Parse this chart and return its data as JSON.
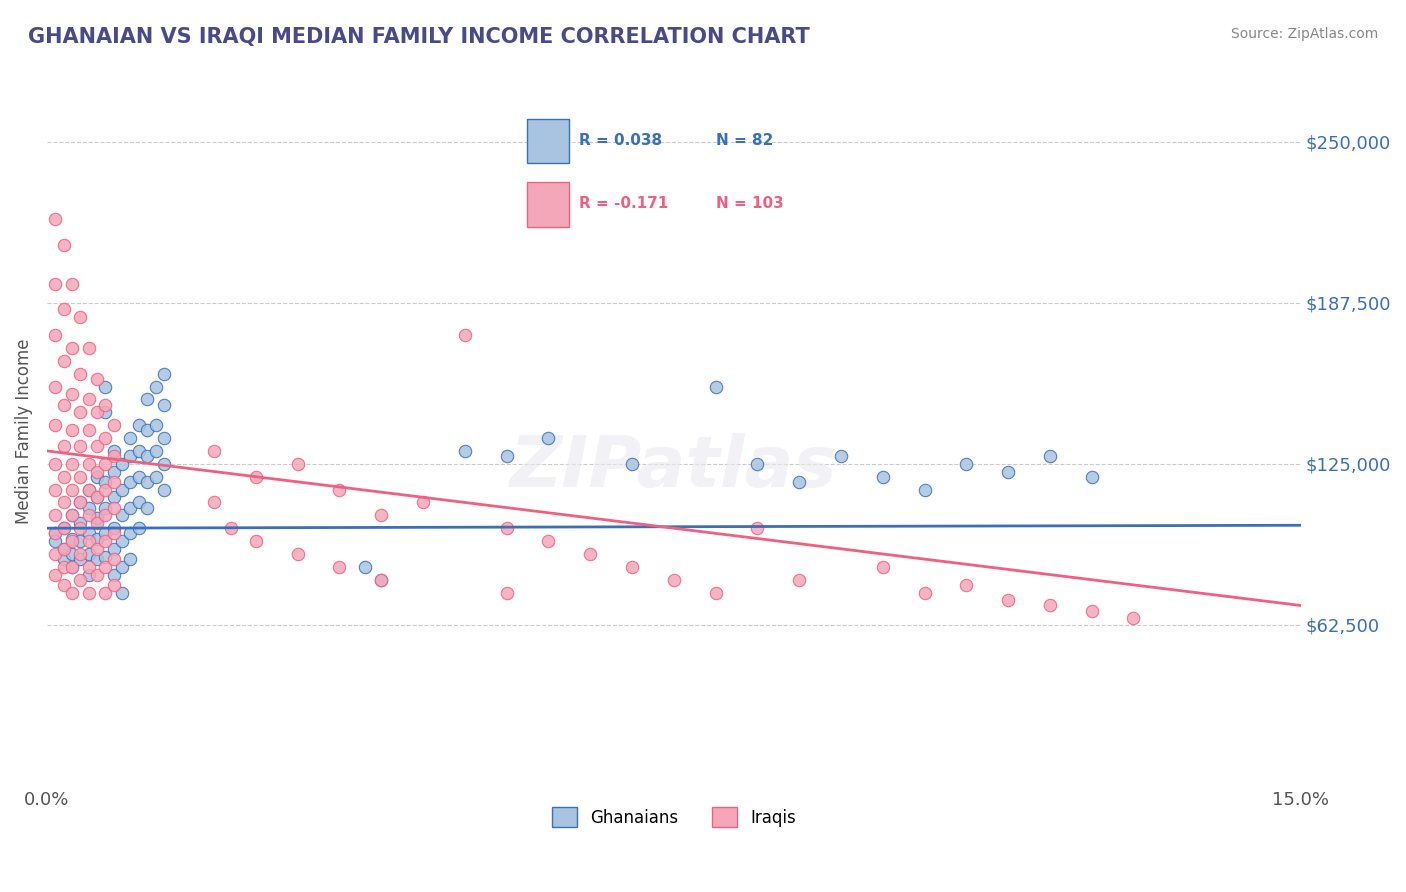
{
  "title": "GHANAIAN VS IRAQI MEDIAN FAMILY INCOME CORRELATION CHART",
  "title_color": "#4a4a8a",
  "xlabel": "",
  "ylabel": "Median Family Income",
  "source_text": "Source: ZipAtlas.com",
  "watermark": "ZIPatlas",
  "x_min": 0.0,
  "x_max": 0.15,
  "y_min": 0,
  "y_max": 275000,
  "y_ticks": [
    62500,
    125000,
    187500,
    250000
  ],
  "y_tick_labels": [
    "$62,500",
    "$125,000",
    "$187,500",
    "$250,000"
  ],
  "x_ticks": [
    0.0,
    0.15
  ],
  "x_tick_labels": [
    "0.0%",
    "15.0%"
  ],
  "ghanaian_color": "#a8c4e0",
  "iraqi_color": "#f4a7b9",
  "ghanaian_line_color": "#3a6fbd",
  "iraqi_line_color": "#f06080",
  "legend_box_color": "#ffffff",
  "legend_border_color": "#cccccc",
  "R_ghanaian": 0.038,
  "N_ghanaian": 82,
  "R_iraqi": -0.171,
  "N_iraqi": 103,
  "ghanaian_scatter": [
    [
      0.001,
      98000
    ],
    [
      0.001,
      95000
    ],
    [
      0.002,
      100000
    ],
    [
      0.002,
      92000
    ],
    [
      0.002,
      88000
    ],
    [
      0.003,
      105000
    ],
    [
      0.003,
      96000
    ],
    [
      0.003,
      90000
    ],
    [
      0.003,
      85000
    ],
    [
      0.004,
      110000
    ],
    [
      0.004,
      102000
    ],
    [
      0.004,
      95000
    ],
    [
      0.004,
      88000
    ],
    [
      0.005,
      115000
    ],
    [
      0.005,
      108000
    ],
    [
      0.005,
      98000
    ],
    [
      0.005,
      90000
    ],
    [
      0.005,
      82000
    ],
    [
      0.006,
      120000
    ],
    [
      0.006,
      112000
    ],
    [
      0.006,
      104000
    ],
    [
      0.006,
      96000
    ],
    [
      0.006,
      88000
    ],
    [
      0.007,
      155000
    ],
    [
      0.007,
      145000
    ],
    [
      0.007,
      118000
    ],
    [
      0.007,
      108000
    ],
    [
      0.007,
      98000
    ],
    [
      0.007,
      89000
    ],
    [
      0.008,
      130000
    ],
    [
      0.008,
      122000
    ],
    [
      0.008,
      112000
    ],
    [
      0.008,
      100000
    ],
    [
      0.008,
      92000
    ],
    [
      0.008,
      82000
    ],
    [
      0.009,
      125000
    ],
    [
      0.009,
      115000
    ],
    [
      0.009,
      105000
    ],
    [
      0.009,
      95000
    ],
    [
      0.009,
      85000
    ],
    [
      0.009,
      75000
    ],
    [
      0.01,
      135000
    ],
    [
      0.01,
      128000
    ],
    [
      0.01,
      118000
    ],
    [
      0.01,
      108000
    ],
    [
      0.01,
      98000
    ],
    [
      0.01,
      88000
    ],
    [
      0.011,
      140000
    ],
    [
      0.011,
      130000
    ],
    [
      0.011,
      120000
    ],
    [
      0.011,
      110000
    ],
    [
      0.011,
      100000
    ],
    [
      0.012,
      150000
    ],
    [
      0.012,
      138000
    ],
    [
      0.012,
      128000
    ],
    [
      0.012,
      118000
    ],
    [
      0.012,
      108000
    ],
    [
      0.013,
      155000
    ],
    [
      0.013,
      140000
    ],
    [
      0.013,
      130000
    ],
    [
      0.013,
      120000
    ],
    [
      0.014,
      160000
    ],
    [
      0.014,
      148000
    ],
    [
      0.014,
      135000
    ],
    [
      0.014,
      125000
    ],
    [
      0.014,
      115000
    ],
    [
      0.05,
      130000
    ],
    [
      0.055,
      128000
    ],
    [
      0.06,
      135000
    ],
    [
      0.07,
      125000
    ],
    [
      0.08,
      155000
    ],
    [
      0.085,
      125000
    ],
    [
      0.09,
      118000
    ],
    [
      0.095,
      128000
    ],
    [
      0.1,
      120000
    ],
    [
      0.105,
      115000
    ],
    [
      0.11,
      125000
    ],
    [
      0.115,
      122000
    ],
    [
      0.12,
      128000
    ],
    [
      0.125,
      120000
    ],
    [
      0.038,
      85000
    ],
    [
      0.04,
      80000
    ]
  ],
  "iraqi_scatter": [
    [
      0.001,
      220000
    ],
    [
      0.001,
      195000
    ],
    [
      0.001,
      175000
    ],
    [
      0.001,
      155000
    ],
    [
      0.001,
      140000
    ],
    [
      0.001,
      125000
    ],
    [
      0.001,
      115000
    ],
    [
      0.001,
      105000
    ],
    [
      0.001,
      98000
    ],
    [
      0.001,
      90000
    ],
    [
      0.001,
      82000
    ],
    [
      0.002,
      210000
    ],
    [
      0.002,
      185000
    ],
    [
      0.002,
      165000
    ],
    [
      0.002,
      148000
    ],
    [
      0.002,
      132000
    ],
    [
      0.002,
      120000
    ],
    [
      0.002,
      110000
    ],
    [
      0.002,
      100000
    ],
    [
      0.002,
      92000
    ],
    [
      0.002,
      85000
    ],
    [
      0.002,
      78000
    ],
    [
      0.003,
      195000
    ],
    [
      0.003,
      170000
    ],
    [
      0.003,
      152000
    ],
    [
      0.003,
      138000
    ],
    [
      0.003,
      125000
    ],
    [
      0.003,
      115000
    ],
    [
      0.003,
      105000
    ],
    [
      0.003,
      95000
    ],
    [
      0.003,
      85000
    ],
    [
      0.003,
      75000
    ],
    [
      0.004,
      182000
    ],
    [
      0.004,
      160000
    ],
    [
      0.004,
      145000
    ],
    [
      0.004,
      132000
    ],
    [
      0.004,
      120000
    ],
    [
      0.004,
      110000
    ],
    [
      0.004,
      100000
    ],
    [
      0.004,
      90000
    ],
    [
      0.004,
      80000
    ],
    [
      0.005,
      170000
    ],
    [
      0.005,
      150000
    ],
    [
      0.005,
      138000
    ],
    [
      0.005,
      125000
    ],
    [
      0.005,
      115000
    ],
    [
      0.005,
      105000
    ],
    [
      0.005,
      95000
    ],
    [
      0.005,
      85000
    ],
    [
      0.005,
      75000
    ],
    [
      0.006,
      158000
    ],
    [
      0.006,
      145000
    ],
    [
      0.006,
      132000
    ],
    [
      0.006,
      122000
    ],
    [
      0.006,
      112000
    ],
    [
      0.006,
      102000
    ],
    [
      0.006,
      92000
    ],
    [
      0.006,
      82000
    ],
    [
      0.007,
      148000
    ],
    [
      0.007,
      135000
    ],
    [
      0.007,
      125000
    ],
    [
      0.007,
      115000
    ],
    [
      0.007,
      105000
    ],
    [
      0.007,
      95000
    ],
    [
      0.007,
      85000
    ],
    [
      0.007,
      75000
    ],
    [
      0.008,
      140000
    ],
    [
      0.008,
      128000
    ],
    [
      0.008,
      118000
    ],
    [
      0.008,
      108000
    ],
    [
      0.008,
      98000
    ],
    [
      0.008,
      88000
    ],
    [
      0.008,
      78000
    ],
    [
      0.02,
      130000
    ],
    [
      0.02,
      110000
    ],
    [
      0.022,
      100000
    ],
    [
      0.025,
      120000
    ],
    [
      0.025,
      95000
    ],
    [
      0.03,
      125000
    ],
    [
      0.03,
      90000
    ],
    [
      0.035,
      115000
    ],
    [
      0.035,
      85000
    ],
    [
      0.04,
      105000
    ],
    [
      0.04,
      80000
    ],
    [
      0.045,
      110000
    ],
    [
      0.05,
      175000
    ],
    [
      0.055,
      100000
    ],
    [
      0.055,
      75000
    ],
    [
      0.06,
      95000
    ],
    [
      0.065,
      90000
    ],
    [
      0.07,
      85000
    ],
    [
      0.075,
      80000
    ],
    [
      0.08,
      75000
    ],
    [
      0.085,
      100000
    ],
    [
      0.09,
      80000
    ],
    [
      0.1,
      85000
    ],
    [
      0.105,
      75000
    ],
    [
      0.11,
      78000
    ],
    [
      0.115,
      72000
    ],
    [
      0.12,
      70000
    ],
    [
      0.125,
      68000
    ],
    [
      0.13,
      65000
    ]
  ]
}
